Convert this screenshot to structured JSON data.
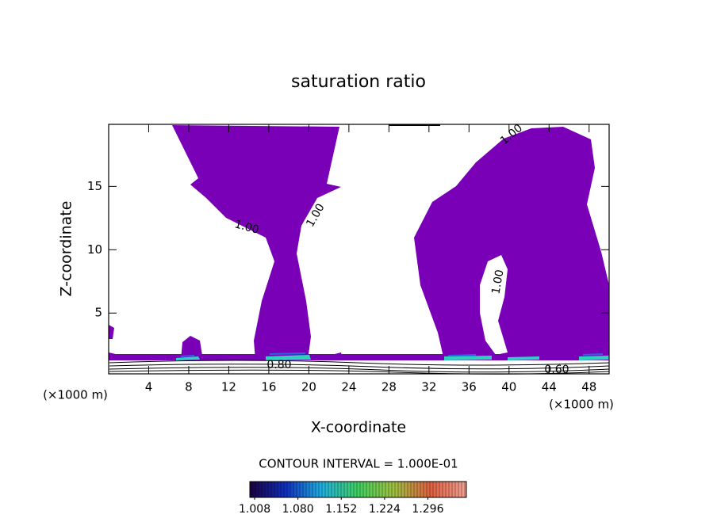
{
  "chart_data": {
    "type": "contour",
    "title": "saturation ratio",
    "xlabel": "X-coordinate",
    "ylabel": "Z-coordinate",
    "x_unit": "(×1000 m)",
    "y_unit": "(×1000 m)",
    "xlim": [
      0,
      50
    ],
    "ylim": [
      0.2,
      19.9
    ],
    "xticks": [
      4,
      8,
      12,
      16,
      20,
      24,
      28,
      32,
      36,
      40,
      44,
      48
    ],
    "yticks": [
      5,
      10,
      15
    ],
    "annotations": [
      "1.00",
      "1.00",
      "1.00",
      "1.00",
      "0.80",
      "0.60"
    ],
    "contour_note": "CONTOUR INTERVAL = 1.000E-01",
    "fill_color": "#7a00b8",
    "colorbar": {
      "lim": [
        1.0,
        1.36
      ],
      "ticks": [
        1.008,
        {
          "value": 1.08,
          "label": "1.080"
        },
        1.152,
        1.224,
        1.296
      ],
      "colors": [
        "#1a0040",
        "#1030c0",
        "#20b0e0",
        "#40d060",
        "#a0c040",
        "#e06040",
        "#f0a090"
      ]
    }
  }
}
